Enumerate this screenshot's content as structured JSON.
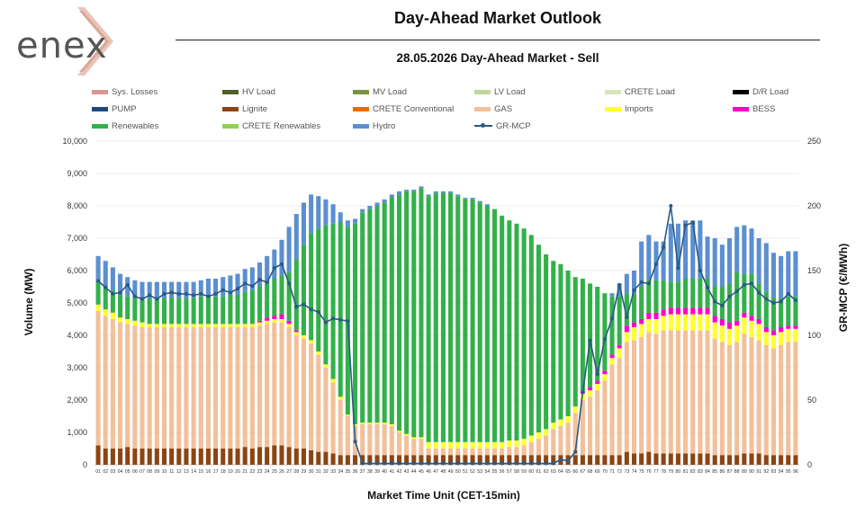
{
  "header": {
    "logo_text": "enex",
    "title": "Day-Ahead Market Outlook",
    "subtitle": "28.05.2026  Day-Ahead Market - Sell"
  },
  "chart_data": {
    "type": "bar",
    "stacked": true,
    "xlabel": "Market Time Unit (CET-15min)",
    "ylabel": "Volume (MW)",
    "y2label": "GR-MCP (€/MWh)",
    "ylim": [
      0,
      10000
    ],
    "y2lim": [
      0,
      250
    ],
    "yticks": [
      "0",
      "1,000",
      "2,000",
      "3,000",
      "4,000",
      "5,000",
      "6,000",
      "7,000",
      "8,000",
      "9,000",
      "10,000"
    ],
    "y2ticks": [
      "0",
      "50",
      "100",
      "150",
      "200",
      "250"
    ],
    "categories": [
      "01",
      "02",
      "03",
      "04",
      "05",
      "06",
      "07",
      "08",
      "09",
      "10",
      "11",
      "12",
      "13",
      "14",
      "15",
      "16",
      "17",
      "18",
      "19",
      "20",
      "21",
      "22",
      "23",
      "24",
      "25",
      "26",
      "27",
      "28",
      "29",
      "30",
      "31",
      "32",
      "33",
      "34",
      "35",
      "36",
      "37",
      "38",
      "39",
      "40",
      "41",
      "42",
      "43",
      "44",
      "45",
      "46",
      "47",
      "48",
      "49",
      "50",
      "51",
      "52",
      "53",
      "54",
      "55",
      "56",
      "57",
      "58",
      "59",
      "60",
      "61",
      "62",
      "63",
      "64",
      "65",
      "66",
      "67",
      "68",
      "69",
      "70",
      "71",
      "72",
      "73",
      "74",
      "75",
      "76",
      "77",
      "78",
      "79",
      "80",
      "81",
      "82",
      "83",
      "84",
      "85",
      "86",
      "87",
      "88",
      "89",
      "90",
      "91",
      "92",
      "93",
      "94",
      "95",
      "96"
    ],
    "legend": [
      {
        "name": "Sys. Losses",
        "color": "#d99594"
      },
      {
        "name": "HV Load",
        "color": "#4f6228"
      },
      {
        "name": "MV Load",
        "color": "#77933c"
      },
      {
        "name": "LV Load",
        "color": "#c3d69b"
      },
      {
        "name": "CRETE Load",
        "color": "#d7e4bd"
      },
      {
        "name": "D/R Load",
        "color": "#000000"
      },
      {
        "name": "PUMP",
        "color": "#1f497d"
      },
      {
        "name": "Lignite",
        "color": "#8b4513"
      },
      {
        "name": "CRETE Conventional",
        "color": "#e46c0a"
      },
      {
        "name": "GAS",
        "color": "#f2c09a"
      },
      {
        "name": "Imports",
        "color": "#ffff33"
      },
      {
        "name": "BESS",
        "color": "#ff00cc"
      },
      {
        "name": "Renewables",
        "color": "#33b04a"
      },
      {
        "name": "CRETE Renewables",
        "color": "#92d050"
      },
      {
        "name": "Hydro",
        "color": "#5b8fd0"
      },
      {
        "name": "GR-MCP",
        "color": "#2a5a85",
        "line": true
      }
    ],
    "series": [
      {
        "name": "Lignite",
        "color": "#8b4513",
        "values": [
          600,
          500,
          500,
          500,
          550,
          500,
          500,
          500,
          500,
          500,
          500,
          500,
          500,
          500,
          500,
          500,
          500,
          500,
          500,
          500,
          550,
          500,
          550,
          550,
          600,
          600,
          550,
          500,
          500,
          450,
          400,
          400,
          350,
          300,
          300,
          300,
          300,
          300,
          300,
          300,
          300,
          300,
          300,
          300,
          300,
          300,
          300,
          300,
          300,
          300,
          300,
          300,
          300,
          300,
          300,
          300,
          300,
          300,
          300,
          300,
          300,
          300,
          300,
          300,
          300,
          300,
          300,
          300,
          300,
          300,
          300,
          300,
          400,
          350,
          350,
          400,
          350,
          350,
          350,
          350,
          350,
          350,
          350,
          350,
          300,
          300,
          300,
          300,
          350,
          350,
          350,
          300,
          300,
          300,
          300,
          300
        ]
      },
      {
        "name": "GAS",
        "color": "#f2c09a",
        "values": [
          4150,
          4100,
          4000,
          3900,
          3800,
          3800,
          3750,
          3750,
          3750,
          3750,
          3750,
          3750,
          3750,
          3750,
          3750,
          3750,
          3750,
          3750,
          3750,
          3750,
          3700,
          3750,
          3750,
          3800,
          3800,
          3800,
          3700,
          3500,
          3400,
          3300,
          3000,
          2600,
          2200,
          1700,
          1200,
          900,
          950,
          950,
          950,
          950,
          900,
          700,
          600,
          500,
          500,
          200,
          200,
          200,
          200,
          200,
          200,
          200,
          200,
          200,
          200,
          200,
          250,
          250,
          300,
          400,
          500,
          600,
          800,
          900,
          1000,
          1300,
          1700,
          1800,
          2000,
          2300,
          2800,
          3000,
          3400,
          3500,
          3600,
          3700,
          3700,
          3800,
          3800,
          3800,
          3800,
          3800,
          3800,
          3800,
          3600,
          3500,
          3400,
          3500,
          3700,
          3600,
          3500,
          3400,
          3300,
          3400,
          3500,
          3500
        ]
      },
      {
        "name": "Imports",
        "color": "#ffff33",
        "values": [
          200,
          200,
          200,
          150,
          150,
          150,
          150,
          100,
          100,
          100,
          100,
          100,
          100,
          100,
          100,
          100,
          100,
          100,
          100,
          100,
          100,
          100,
          100,
          100,
          100,
          100,
          100,
          100,
          100,
          100,
          100,
          100,
          100,
          100,
          50,
          50,
          50,
          50,
          50,
          50,
          50,
          50,
          50,
          50,
          50,
          200,
          200,
          200,
          200,
          200,
          200,
          200,
          200,
          200,
          200,
          200,
          200,
          200,
          200,
          200,
          200,
          200,
          200,
          200,
          200,
          200,
          200,
          200,
          200,
          200,
          200,
          300,
          300,
          400,
          400,
          400,
          450,
          450,
          500,
          500,
          500,
          500,
          500,
          500,
          500,
          500,
          500,
          500,
          500,
          500,
          500,
          400,
          400,
          400,
          400,
          400
        ]
      },
      {
        "name": "BESS",
        "color": "#ff00cc",
        "values": [
          0,
          0,
          0,
          0,
          0,
          0,
          0,
          0,
          0,
          0,
          0,
          0,
          0,
          0,
          0,
          0,
          0,
          0,
          0,
          0,
          0,
          0,
          50,
          100,
          100,
          150,
          100,
          50,
          0,
          0,
          0,
          0,
          0,
          0,
          0,
          0,
          0,
          0,
          0,
          0,
          0,
          0,
          0,
          0,
          0,
          0,
          0,
          0,
          0,
          0,
          0,
          0,
          0,
          0,
          0,
          0,
          0,
          0,
          0,
          0,
          0,
          0,
          0,
          0,
          0,
          0,
          50,
          100,
          100,
          100,
          100,
          100,
          200,
          150,
          150,
          200,
          200,
          200,
          200,
          200,
          200,
          200,
          200,
          200,
          200,
          200,
          200,
          150,
          150,
          150,
          150,
          150,
          150,
          150,
          100,
          100
        ]
      },
      {
        "name": "Renewables",
        "color": "#33b04a",
        "values": [
          700,
          700,
          700,
          700,
          700,
          700,
          700,
          800,
          800,
          800,
          800,
          800,
          800,
          800,
          850,
          850,
          850,
          850,
          900,
          900,
          1000,
          1050,
          1050,
          1100,
          1150,
          1200,
          1500,
          2200,
          2800,
          3300,
          3800,
          4300,
          4800,
          5400,
          5800,
          6200,
          6500,
          6600,
          6700,
          6800,
          7000,
          7300,
          7500,
          7600,
          7700,
          7600,
          7700,
          7700,
          7700,
          7600,
          7500,
          7500,
          7400,
          7300,
          7200,
          7000,
          6800,
          6700,
          6500,
          6200,
          5800,
          5400,
          5000,
          4800,
          4500,
          4000,
          3500,
          3200,
          2900,
          2400,
          1800,
          1500,
          1000,
          900,
          1000,
          1000,
          1000,
          900,
          800,
          800,
          900,
          900,
          900,
          900,
          900,
          1000,
          1200,
          1500,
          1200,
          1300,
          1100,
          1100,
          1000,
          900,
          900,
          900
        ]
      },
      {
        "name": "Hydro",
        "color": "#5b8fd0",
        "values": [
          800,
          800,
          700,
          650,
          600,
          550,
          550,
          500,
          500,
          500,
          500,
          500,
          500,
          500,
          500,
          550,
          550,
          600,
          600,
          650,
          700,
          700,
          750,
          800,
          900,
          1100,
          1400,
          1400,
          1300,
          1200,
          1000,
          800,
          600,
          300,
          200,
          150,
          100,
          100,
          100,
          100,
          100,
          100,
          50,
          50,
          50,
          50,
          50,
          50,
          50,
          50,
          50,
          50,
          50,
          50,
          0,
          0,
          0,
          0,
          0,
          0,
          0,
          0,
          0,
          0,
          0,
          0,
          0,
          0,
          0,
          0,
          100,
          400,
          600,
          700,
          1400,
          1400,
          1200,
          1200,
          1800,
          1800,
          1800,
          1800,
          1800,
          1300,
          1500,
          1300,
          1400,
          1400,
          1500,
          1400,
          1400,
          1500,
          1400,
          1300,
          1400,
          1400
        ]
      }
    ],
    "line_series": {
      "name": "GR-MCP",
      "color": "#2a5a85",
      "axis": "right",
      "values": [
        142,
        137,
        132,
        133,
        139,
        130,
        128,
        131,
        128,
        132,
        133,
        132,
        132,
        131,
        132,
        130,
        132,
        135,
        133,
        136,
        140,
        138,
        143,
        141,
        152,
        155,
        140,
        122,
        124,
        120,
        118,
        110,
        113,
        112,
        111,
        18,
        1,
        1,
        1,
        1,
        1,
        1,
        1,
        1,
        1,
        1,
        1,
        1,
        1,
        1,
        1,
        1,
        1,
        1,
        1,
        1,
        1,
        1,
        1,
        1,
        1,
        1,
        1,
        4,
        3,
        10,
        56,
        96,
        70,
        97,
        113,
        139,
        114,
        135,
        141,
        140,
        155,
        168,
        200,
        152,
        185,
        187,
        150,
        137,
        126,
        123,
        130,
        134,
        139,
        140,
        133,
        128,
        125,
        126,
        132,
        127
      ]
    }
  }
}
